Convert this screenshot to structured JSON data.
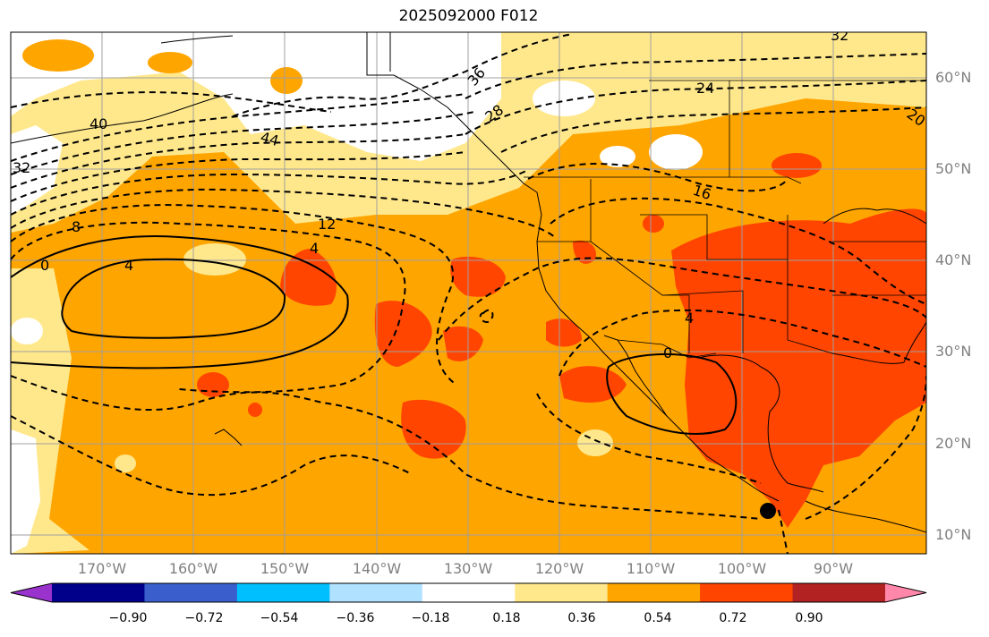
{
  "title": "2025092000 F012",
  "latitude_labels": [
    "60°N",
    "50°N",
    "40°N",
    "30°N",
    "20°N",
    "10°N"
  ],
  "longitude_labels": [
    "170°W",
    "160°W",
    "150°W",
    "140°W",
    "130°W",
    "120°W",
    "110°W",
    "100°W",
    "90°W"
  ],
  "colorbar": {
    "colors": [
      "#9a32cd",
      "#00008b",
      "#3a5fcd",
      "#00bfff",
      "#b0e2ff",
      "#ffffff",
      "#ffe88c",
      "#ffa500",
      "#ff4500",
      "#b22222",
      "#ff88aa"
    ],
    "tick_labels": [
      "−0.90",
      "−0.72",
      "−0.54",
      "−0.36",
      "−0.18",
      "0.18",
      "0.36",
      "0.54",
      "0.72",
      "0.90"
    ]
  },
  "contour_labels": {
    "c40": "40",
    "c44": "44",
    "c32w": "32",
    "c8": "8",
    "c0w": "0",
    "c4a": "4",
    "c4b": "4",
    "c12": "12",
    "c36": "36",
    "c28": "28",
    "c24": "24",
    "c16": "16",
    "c32e": "32",
    "c20": "20",
    "c4c": "4",
    "c0c": "0"
  },
  "colors": {
    "contour": "#000000",
    "grid": "#a0a0a0",
    "coast": "#000000"
  }
}
